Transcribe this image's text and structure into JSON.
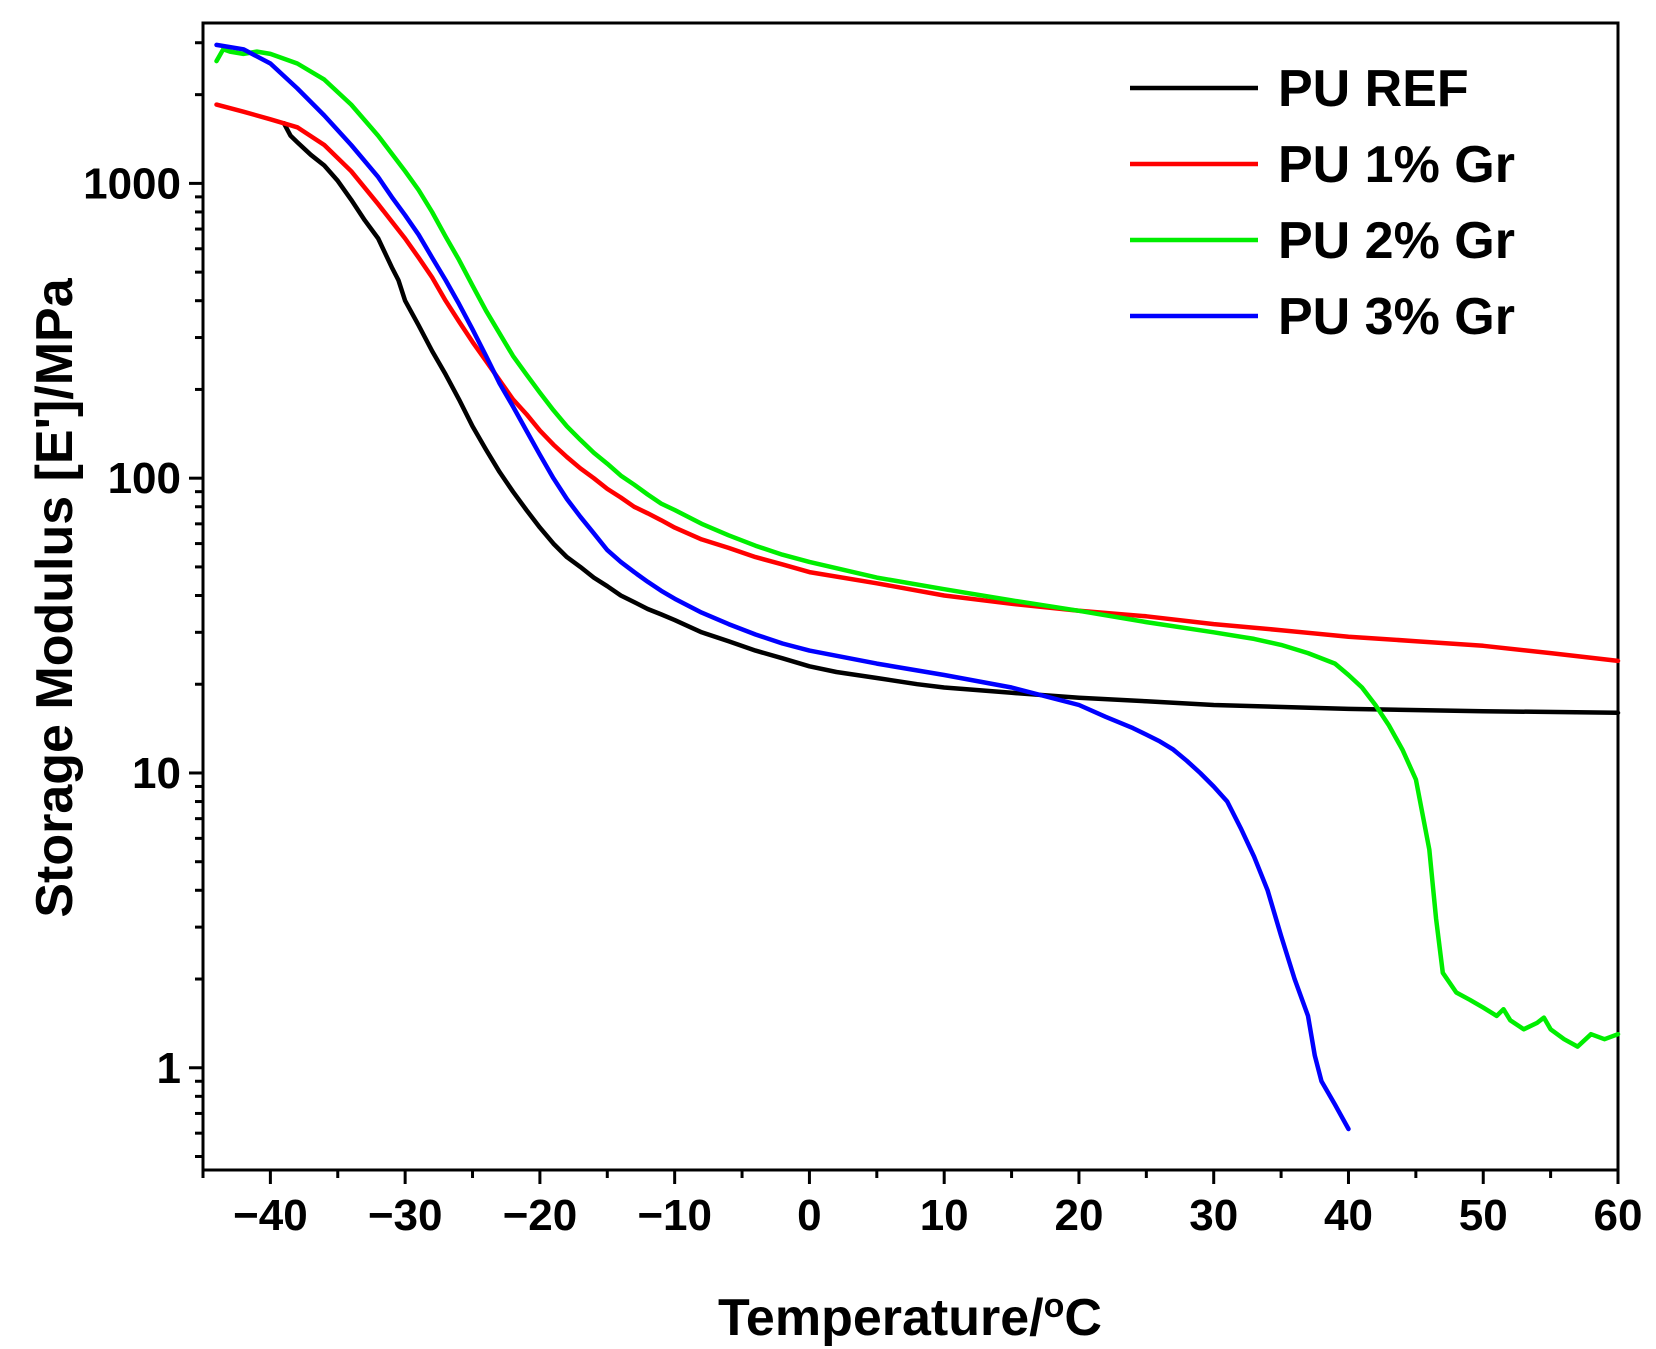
{
  "chart_data": {
    "type": "line",
    "title": "",
    "xlabel": "Temperature/",
    "xlabel_unit_sup": "o",
    "xlabel_unit": "C",
    "ylabel": "Storage Modulus [E']/MPa",
    "xlim": [
      -45,
      60
    ],
    "ylim": [
      0.45,
      3500
    ],
    "yscale": "log",
    "x_ticks": [
      -40,
      -30,
      -20,
      -10,
      0,
      10,
      20,
      30,
      40,
      50,
      60
    ],
    "x_tick_labels": [
      "−40",
      "−30",
      "−20",
      "−10",
      "0",
      "10",
      "20",
      "30",
      "40",
      "50",
      "60"
    ],
    "y_ticks": [
      1,
      10,
      100,
      1000
    ],
    "y_tick_labels": [
      "1",
      "10",
      "100",
      "1000"
    ],
    "grid": false,
    "legend_position": "top-right",
    "series": [
      {
        "name": "PU REF",
        "color": "#000000",
        "x": [
          -39,
          -38.5,
          -38,
          -37,
          -36,
          -35,
          -34,
          -33,
          -32,
          -31,
          -30.5,
          -30,
          -29,
          -28,
          -27,
          -26,
          -25,
          -24,
          -23,
          -22,
          -21,
          -20,
          -19,
          -18,
          -17,
          -16,
          -15,
          -14,
          -13,
          -12,
          -11,
          -10,
          -8,
          -6,
          -4,
          -2,
          0,
          2,
          5,
          8,
          10,
          15,
          20,
          25,
          30,
          40,
          50,
          60
        ],
        "y": [
          1600,
          1450,
          1380,
          1250,
          1150,
          1020,
          880,
          750,
          650,
          520,
          470,
          400,
          330,
          270,
          225,
          185,
          150,
          125,
          105,
          90,
          78,
          68,
          60,
          54,
          50,
          46,
          43,
          40,
          38,
          36,
          34.5,
          33,
          30,
          28,
          26,
          24.5,
          23,
          22,
          21,
          20,
          19.5,
          18.7,
          18,
          17.5,
          17,
          16.5,
          16.2,
          16
        ]
      },
      {
        "name": "PU 1% Gr",
        "color": "#ff0000",
        "x": [
          -44,
          -42,
          -40,
          -38,
          -36,
          -34,
          -32,
          -30,
          -29,
          -28,
          -27,
          -26,
          -25,
          -24,
          -23,
          -22,
          -21,
          -20,
          -19,
          -18,
          -17,
          -16,
          -15,
          -14,
          -13,
          -12,
          -11,
          -10,
          -8,
          -6,
          -4,
          -2,
          0,
          5,
          10,
          15,
          20,
          25,
          30,
          35,
          40,
          45,
          50,
          55,
          60
        ],
        "y": [
          1850,
          1750,
          1650,
          1550,
          1350,
          1100,
          850,
          650,
          560,
          480,
          400,
          340,
          290,
          250,
          215,
          185,
          165,
          145,
          130,
          118,
          108,
          100,
          92,
          86,
          80,
          76,
          72,
          68,
          62,
          58,
          54,
          51,
          48,
          44,
          40,
          37.5,
          35.5,
          34,
          32,
          30.5,
          29,
          28,
          27,
          25.5,
          24
        ]
      },
      {
        "name": "PU 2% Gr",
        "color": "#00ee00",
        "x": [
          -44,
          -43.5,
          -43,
          -42,
          -41,
          -40,
          -38,
          -36,
          -34,
          -32,
          -30,
          -29,
          -28,
          -27,
          -26,
          -25,
          -24,
          -23,
          -22,
          -21,
          -20,
          -19,
          -18,
          -17,
          -16,
          -15,
          -14,
          -13,
          -12,
          -11,
          -10,
          -8,
          -6,
          -4,
          -2,
          0,
          5,
          10,
          15,
          20,
          25,
          30,
          33,
          35,
          37,
          39,
          40,
          41,
          42,
          43,
          44,
          45,
          46,
          46.5,
          47,
          48,
          49,
          50,
          51,
          51.5,
          52,
          53,
          54,
          54.5,
          55,
          56,
          57,
          58,
          59,
          60
        ],
        "y": [
          2600,
          2850,
          2800,
          2750,
          2800,
          2750,
          2550,
          2250,
          1850,
          1450,
          1100,
          950,
          800,
          660,
          550,
          450,
          370,
          310,
          260,
          225,
          195,
          170,
          150,
          135,
          122,
          112,
          102,
          95,
          88,
          82,
          78,
          70,
          64,
          59,
          55,
          52,
          46,
          42,
          38.5,
          35.5,
          32.5,
          30,
          28.5,
          27.2,
          25.5,
          23.5,
          21.5,
          19.5,
          17,
          14.5,
          12,
          9.5,
          5.5,
          3.2,
          2.1,
          1.8,
          1.7,
          1.6,
          1.5,
          1.58,
          1.45,
          1.35,
          1.42,
          1.48,
          1.35,
          1.25,
          1.18,
          1.3,
          1.25,
          1.3
        ]
      },
      {
        "name": "PU 3% Gr",
        "color": "#0000ff",
        "x": [
          -44,
          -42,
          -40,
          -38,
          -36,
          -34,
          -32,
          -31,
          -30,
          -29,
          -28,
          -27,
          -26,
          -25,
          -24,
          -23,
          -22,
          -21,
          -20,
          -19,
          -18,
          -17,
          -16,
          -15,
          -14,
          -13,
          -12,
          -11,
          -10,
          -8,
          -6,
          -4,
          -2,
          0,
          5,
          10,
          15,
          20,
          22,
          24,
          25,
          26,
          27,
          28,
          29,
          30,
          31,
          32,
          33,
          34,
          35,
          36,
          37,
          37.5,
          38,
          39,
          40
        ],
        "y": [
          2950,
          2850,
          2550,
          2100,
          1700,
          1350,
          1050,
          900,
          780,
          670,
          560,
          470,
          390,
          320,
          260,
          210,
          175,
          145,
          120,
          100,
          85,
          74,
          65,
          57,
          52,
          48,
          44.5,
          41.5,
          39,
          35,
          32,
          29.5,
          27.5,
          26,
          23.5,
          21.5,
          19.5,
          17,
          15.5,
          14.2,
          13.5,
          12.8,
          12,
          11,
          10,
          9,
          8,
          6.5,
          5.2,
          4,
          2.8,
          2,
          1.5,
          1.1,
          0.9,
          0.75,
          0.62
        ]
      }
    ]
  }
}
